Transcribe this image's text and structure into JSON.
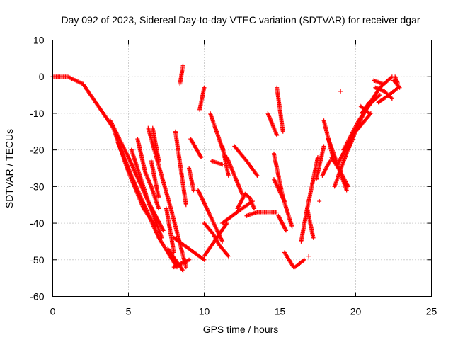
{
  "chart_data": {
    "type": "scatter",
    "title": "Day 092 of 2023, Sidereal Day-to-day VTEC variation (SDTVAR) for receiver dgar",
    "xlabel": "GPS time / hours",
    "ylabel": "SDTVAR / TECUs",
    "xlim": [
      0,
      25
    ],
    "ylim": [
      -60,
      10
    ],
    "xticks": [
      "0",
      "5",
      "10",
      "15",
      "20",
      "25"
    ],
    "yticks": [
      "10",
      "0",
      "-10",
      "-20",
      "-30",
      "-40",
      "-50",
      "-60"
    ],
    "grid": true,
    "marker": "+",
    "series_color": "#ff0000",
    "tracks": [
      {
        "x": [
          0.0,
          1.0,
          2.0,
          3.0,
          4.0,
          5.0,
          6.0,
          6.8
        ],
        "y": [
          0,
          0,
          -2,
          -8,
          -14,
          -26,
          -36,
          -41
        ]
      },
      {
        "x": [
          3.8,
          5.0,
          6.3,
          7.2
        ],
        "y": [
          -12,
          -22,
          -34,
          -44
        ]
      },
      {
        "x": [
          4.3,
          5.5,
          7.0,
          8.2
        ],
        "y": [
          -18,
          -30,
          -44,
          -52
        ]
      },
      {
        "x": [
          5.2,
          6.3,
          7.3
        ],
        "y": [
          -20,
          -34,
          -42
        ]
      },
      {
        "x": [
          5.6,
          6.1,
          6.5,
          7.0
        ],
        "y": [
          -17,
          -26,
          -30,
          -36
        ]
      },
      {
        "x": [
          6.3,
          7.8,
          8.8
        ],
        "y": [
          -14,
          -36,
          -52
        ]
      },
      {
        "x": [
          7.6,
          8.6
        ],
        "y": [
          -47,
          -53
        ]
      },
      {
        "x": [
          8.0,
          9.0
        ],
        "y": [
          -52,
          -50
        ]
      },
      {
        "x": [
          7.5,
          8.0
        ],
        "y": [
          -36,
          -48
        ]
      },
      {
        "x": [
          8.0,
          9.0,
          10.0
        ],
        "y": [
          -44,
          -47,
          -50
        ]
      },
      {
        "x": [
          6.5,
          7.0
        ],
        "y": [
          -23,
          -33
        ]
      },
      {
        "x": [
          6.6,
          7.0
        ],
        "y": [
          -14,
          -23
        ]
      },
      {
        "x": [
          8.4,
          8.6
        ],
        "y": [
          -2,
          3
        ]
      },
      {
        "x": [
          9.7,
          10.0
        ],
        "y": [
          -9,
          -3
        ]
      },
      {
        "x": [
          8.1,
          8.8
        ],
        "y": [
          -15,
          -35
        ]
      },
      {
        "x": [
          9.0,
          9.3
        ],
        "y": [
          -25,
          -31
        ]
      },
      {
        "x": [
          9.1,
          9.8
        ],
        "y": [
          -17,
          -22
        ]
      },
      {
        "x": [
          10.0,
          10.6,
          11.0,
          11.6
        ],
        "y": [
          -40,
          -43,
          -46,
          -49
        ]
      },
      {
        "x": [
          10.0,
          10.5,
          11.0,
          11.5
        ],
        "y": [
          -49,
          -46,
          -43,
          -40
        ]
      },
      {
        "x": [
          9.6,
          10.4,
          11.2
        ],
        "y": [
          -31,
          -38,
          -45
        ]
      },
      {
        "x": [
          10.4,
          11.4
        ],
        "y": [
          -10,
          -22
        ]
      },
      {
        "x": [
          10.5,
          11.2
        ],
        "y": [
          -23,
          -24
        ]
      },
      {
        "x": [
          11.2,
          11.6
        ],
        "y": [
          -19,
          -27
        ]
      },
      {
        "x": [
          11.5,
          12.1
        ],
        "y": [
          -22,
          -28
        ]
      },
      {
        "x": [
          12.1,
          12.5
        ],
        "y": [
          -28,
          -32
        ]
      },
      {
        "x": [
          11.2,
          12.5,
          13.2
        ],
        "y": [
          -40,
          -36,
          -34
        ]
      },
      {
        "x": [
          12.2,
          12.7,
          13.0,
          13.3
        ],
        "y": [
          -36,
          -32,
          -33,
          -36
        ]
      },
      {
        "x": [
          12.8,
          13.5,
          14.2,
          14.8
        ],
        "y": [
          -38,
          -37,
          -37,
          -37
        ]
      },
      {
        "x": [
          12.0,
          12.8,
          13.5
        ],
        "y": [
          -19,
          -23,
          -27
        ]
      },
      {
        "x": [
          14.2,
          14.8
        ],
        "y": [
          -10,
          -16
        ]
      },
      {
        "x": [
          14.6,
          15.3
        ],
        "y": [
          -28,
          -34
        ]
      },
      {
        "x": [
          14.9,
          15.4
        ],
        "y": [
          -38,
          -42
        ]
      },
      {
        "x": [
          14.6,
          15.2,
          15.8
        ],
        "y": [
          -21,
          -33,
          -41
        ]
      },
      {
        "x": [
          14.8,
          15.2
        ],
        "y": [
          -3,
          -15
        ]
      },
      {
        "x": [
          15.3,
          15.9
        ],
        "y": [
          -48,
          -52
        ]
      },
      {
        "x": [
          16.4,
          16.8,
          17.2,
          17.5
        ],
        "y": [
          -45,
          -36,
          -28,
          -22
        ]
      },
      {
        "x": [
          16.8,
          17.2
        ],
        "y": [
          -36,
          -44
        ]
      },
      {
        "x": [
          17.4,
          17.9
        ],
        "y": [
          -28,
          -19
        ]
      },
      {
        "x": [
          17.8,
          18.3
        ],
        "y": [
          -27,
          -23
        ]
      },
      {
        "x": [
          17.9,
          18.5
        ],
        "y": [
          -12,
          -22
        ]
      },
      {
        "x": [
          18.2,
          18.8,
          19.4
        ],
        "y": [
          -17,
          -24,
          -31
        ]
      },
      {
        "x": [
          18.4,
          19.0,
          19.5
        ],
        "y": [
          -22,
          -26,
          -30
        ]
      },
      {
        "x": [
          18.6,
          19.3,
          20.0,
          21.0
        ],
        "y": [
          -30,
          -22,
          -15,
          -10
        ]
      },
      {
        "x": [
          18.8,
          19.8,
          20.8,
          21.6
        ],
        "y": [
          -24,
          -16,
          -8,
          -5
        ]
      },
      {
        "x": [
          19.2,
          20.2,
          21.2
        ],
        "y": [
          -20,
          -12,
          -6
        ]
      },
      {
        "x": [
          20.3,
          20.9
        ],
        "y": [
          -8,
          -10
        ]
      },
      {
        "x": [
          20.8,
          21.6,
          22.4
        ],
        "y": [
          -8,
          -3,
          0
        ]
      },
      {
        "x": [
          21.2,
          21.8
        ],
        "y": [
          -1,
          -2
        ]
      },
      {
        "x": [
          21.3,
          21.9,
          22.4
        ],
        "y": [
          -3,
          -4,
          -6
        ]
      },
      {
        "x": [
          21.5,
          22.2,
          22.8
        ],
        "y": [
          -7,
          -5,
          -3
        ]
      },
      {
        "x": [
          22.5,
          22.9
        ],
        "y": [
          -1,
          -3
        ]
      },
      {
        "x": [
          22.6,
          22.8
        ],
        "y": [
          0,
          -2
        ]
      },
      {
        "x": [
          20.4,
          20.9
        ],
        "y": [
          -10,
          -7
        ]
      },
      {
        "x": [
          16.0,
          16.6
        ],
        "y": [
          -52,
          -50
        ]
      }
    ],
    "isolated_points": [
      [
        15.5,
        -49
      ],
      [
        17.6,
        -34
      ],
      [
        19.0,
        -4
      ],
      [
        22.7,
        -2
      ],
      [
        8.5,
        -51
      ],
      [
        16.9,
        -49
      ]
    ]
  }
}
